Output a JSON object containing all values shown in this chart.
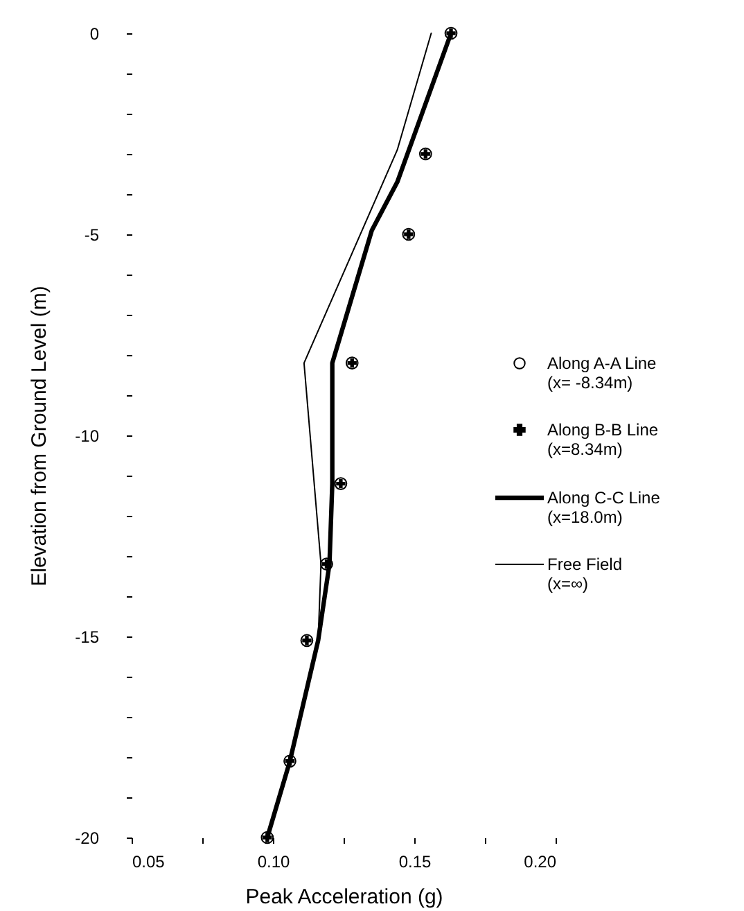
{
  "chart_data": {
    "type": "line",
    "xlabel": "Peak Acceleration (g)",
    "ylabel": "Elevation from Ground Level (m)",
    "xlim": [
      0.05,
      0.2
    ],
    "ylim": [
      -20,
      0
    ],
    "xticks": [
      0.05,
      {
        "value": 0.075,
        "label": null
      },
      {
        "value": 0.1,
        "label": "0.10"
      },
      {
        "value": 0.125,
        "label": null
      },
      0.15,
      {
        "value": 0.175,
        "label": null
      },
      {
        "value": 0.2,
        "label": "0.20"
      }
    ],
    "yticks": [
      0,
      {
        "value": -1,
        "label": null
      },
      {
        "value": -2,
        "label": null
      },
      {
        "value": -3,
        "label": null
      },
      {
        "value": -4,
        "label": null
      },
      -5,
      {
        "value": -6,
        "label": null
      },
      {
        "value": -7,
        "label": null
      },
      {
        "value": -8,
        "label": null
      },
      {
        "value": -9,
        "label": null
      },
      -10,
      {
        "value": -11,
        "label": null
      },
      {
        "value": -12,
        "label": null
      },
      {
        "value": -13,
        "label": null
      },
      {
        "value": -14,
        "label": null
      },
      -15,
      {
        "value": -16,
        "label": null
      },
      {
        "value": -17,
        "label": null
      },
      {
        "value": -18,
        "label": null
      },
      {
        "value": -19,
        "label": null
      },
      -20
    ],
    "grid": false,
    "legend": "right",
    "series": [
      {
        "name": "Along A-A Line (x= -8.34m)",
        "type": "scatter",
        "marker": "circle",
        "color": "#000000",
        "x": [
          0.163,
          0.154,
          0.148,
          0.128,
          0.124,
          0.119,
          0.112,
          0.106,
          0.098
        ],
        "values": [
          0,
          -3,
          -5,
          -8.2,
          -11.2,
          -13.2,
          -15.1,
          -18.1,
          -20
        ]
      },
      {
        "name": "Along B-B Line (x=8.34m)",
        "type": "scatter",
        "marker": "cross",
        "color": "#000000",
        "x": [
          0.163,
          0.154,
          0.148,
          0.128,
          0.124,
          0.119,
          0.112,
          0.106,
          0.098
        ],
        "values": [
          0,
          -3,
          -5,
          -8.2,
          -11.2,
          -13.2,
          -15.1,
          -18.1,
          -20
        ]
      },
      {
        "name": "Along C-C Line (x=18.0m)",
        "color": "#000000",
        "x": [
          0.163,
          0.144,
          0.135,
          0.121,
          0.121,
          0.12,
          0.116,
          0.106,
          0.098
        ],
        "values": [
          0,
          -3.7,
          -4.9,
          -8.2,
          -11.2,
          -13.2,
          -15.1,
          -18.1,
          -20
        ]
      },
      {
        "name": "Free Field (x=∞)",
        "color": "#000000",
        "x": [
          0.156,
          0.144,
          0.111,
          0.117,
          0.116,
          0.106,
          0.098
        ],
        "values": [
          0,
          -2.9,
          -8.2,
          -13.2,
          -15.1,
          -18.1,
          -20
        ]
      }
    ]
  }
}
